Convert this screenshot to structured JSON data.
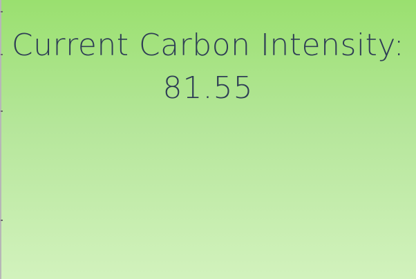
{
  "page": {
    "headline": "Current Carbon Intensity:",
    "value": "81.55"
  },
  "colors": {
    "text": "#2e3d55",
    "background_top": "#9ae06f",
    "background_bottom": "#d2f2bd"
  }
}
